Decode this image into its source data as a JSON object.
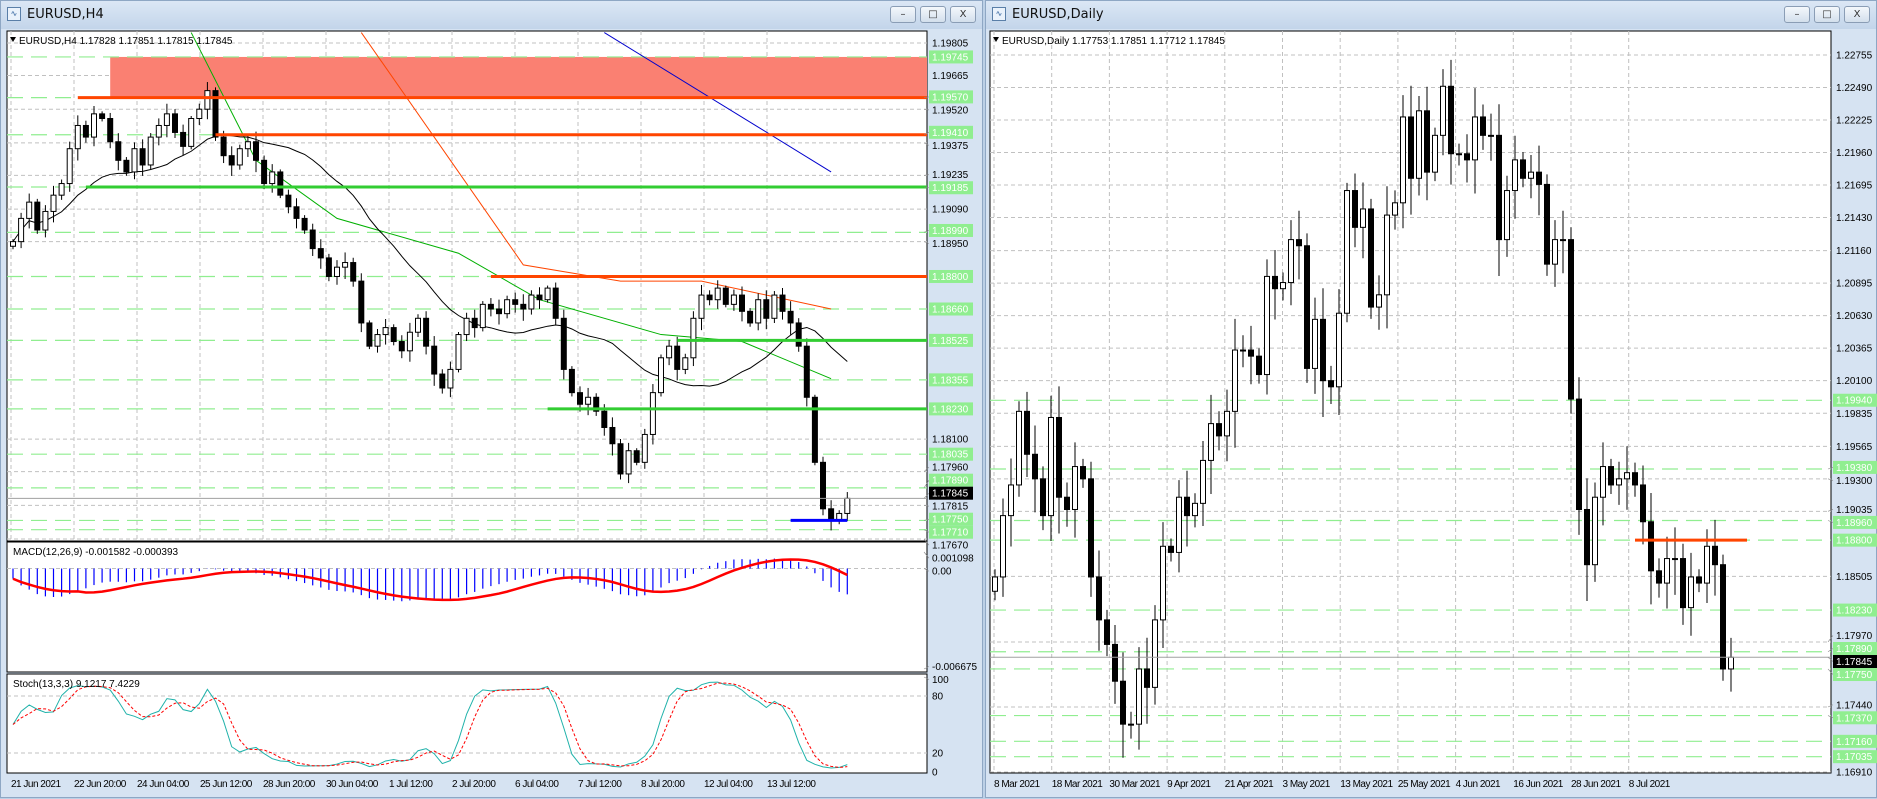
{
  "left_window": {
    "title": "EURUSD,H4",
    "header": "EURUSD,H4  1.17828 1.17851 1.17815 1.17845",
    "buttons": {
      "minimize": "–",
      "restore": "□",
      "close": "X"
    }
  },
  "right_window": {
    "title": "EURUSD,Daily",
    "header": "EURUSD,Daily  1.17753 1.17851 1.17712 1.17845",
    "buttons": {
      "minimize": "–",
      "restore": "□",
      "close": "X"
    }
  },
  "colors": {
    "bull_body": "#ffffff",
    "bear_body": "#000000",
    "level_label": "#90ee90",
    "resistance": "#ff4500",
    "support": "#32cd32",
    "zone": "#fa8072",
    "grid": "#c0c0c0",
    "macd_hist": "#0000ff",
    "macd_signal": "#ff0000",
    "stoch_main": "#20b2aa",
    "stoch_signal": "#ff0000"
  },
  "chart_data": [
    {
      "type": "candlestick",
      "symbol": "EURUSD",
      "timeframe": "H4",
      "ylim": [
        1.1767,
        1.19805
      ],
      "price_ticks": [
        "1.19805",
        "1.19665",
        "1.19520",
        "1.19375",
        "1.19235",
        "1.19090",
        "1.18950",
        "1.18100",
        "1.17960",
        "1.17815",
        "1.17670"
      ],
      "level_labels": [
        "1.19745",
        "1.19570",
        "1.19410",
        "1.19185",
        "1.18990",
        "1.18800",
        "1.18660",
        "1.18525",
        "1.18355",
        "1.18230",
        "1.18035",
        "1.17890",
        "1.17750",
        "1.17710"
      ],
      "current_price": "1.17845",
      "x_labels": [
        "21 Jun 2021",
        "22 Jun 20:00",
        "24 Jun 04:00",
        "25 Jun 12:00",
        "28 Jun 20:00",
        "30 Jun 04:00",
        "1 Jul 12:00",
        "2 Jul 20:00",
        "6 Jul 04:00",
        "7 Jul 12:00",
        "8 Jul 20:00",
        "12 Jul 04:00",
        "13 Jul 12:00"
      ],
      "close": [
        1.1895,
        1.1905,
        1.1912,
        1.19,
        1.1908,
        1.1915,
        1.192,
        1.1935,
        1.1945,
        1.194,
        1.195,
        1.1948,
        1.1938,
        1.193,
        1.1925,
        1.1935,
        1.1928,
        1.194,
        1.1945,
        1.195,
        1.1942,
        1.1936,
        1.1948,
        1.1952,
        1.196,
        1.194,
        1.1932,
        1.1928,
        1.1935,
        1.1938,
        1.193,
        1.192,
        1.1925,
        1.1915,
        1.191,
        1.1905,
        1.19,
        1.1892,
        1.1888,
        1.188,
        1.1884,
        1.1886,
        1.1878,
        1.186,
        1.185,
        1.1855,
        1.1858,
        1.1852,
        1.1848,
        1.1856,
        1.1862,
        1.185,
        1.1838,
        1.1832,
        1.184,
        1.1855,
        1.1862,
        1.1858,
        1.1868,
        1.1866,
        1.1864,
        1.187,
        1.1868,
        1.1866,
        1.1872,
        1.187,
        1.1875,
        1.1862,
        1.184,
        1.183,
        1.1825,
        1.1828,
        1.1822,
        1.1815,
        1.1808,
        1.1795,
        1.1805,
        1.18,
        1.1812,
        1.183,
        1.1845,
        1.185,
        1.184,
        1.1845,
        1.1862,
        1.1872,
        1.187,
        1.1875,
        1.1868,
        1.1872,
        1.1865,
        1.186,
        1.187,
        1.1862,
        1.1872,
        1.1865,
        1.186,
        1.185,
        1.1828,
        1.18,
        1.178,
        1.1775,
        1.1778,
        1.17845
      ],
      "zones": [
        {
          "from_bar": 12,
          "top": 1.19745,
          "bottom": 1.1957
        }
      ],
      "hlines": [
        {
          "price": 1.1957,
          "from_bar": 8,
          "color": "resistance"
        },
        {
          "price": 1.1941,
          "from_bar": 25,
          "color": "resistance"
        },
        {
          "price": 1.188,
          "from_bar": 59,
          "color": "resistance"
        },
        {
          "price": 1.19185,
          "from_bar": 9,
          "color": "support"
        },
        {
          "price": 1.18525,
          "from_bar": 82,
          "color": "support"
        },
        {
          "price": 1.1823,
          "from_bar": 66,
          "color": "support"
        },
        {
          "price": 1.1775,
          "from_bar": 96,
          "to_bar": 103,
          "color": "macd_hist"
        }
      ],
      "moving_averages": [
        {
          "color": "#00b000",
          "points": [
            [
              22,
              1.1985
            ],
            [
              30,
              1.193
            ],
            [
              40,
              1.1905
            ],
            [
              55,
              1.189
            ],
            [
              65,
              1.187
            ],
            [
              80,
              1.1855
            ],
            [
              90,
              1.1852
            ],
            [
              101,
              1.1836
            ]
          ]
        },
        {
          "color": "#ff4500",
          "points": [
            [
              43,
              1.1985
            ],
            [
              55,
              1.1925
            ],
            [
              63,
              1.1885
            ],
            [
              75,
              1.1878
            ],
            [
              85,
              1.1878
            ],
            [
              101,
              1.1866
            ]
          ]
        },
        {
          "color": "#0000cd",
          "points": [
            [
              73,
              1.1985
            ],
            [
              101,
              1.1925
            ]
          ]
        }
      ],
      "macd": {
        "label": "MACD(12,26,9) -0.001582 -0.000393",
        "ticks": [
          "0.001098",
          "0.00",
          "-0.006675"
        ],
        "ylim": [
          -0.006675,
          0.001098
        ]
      },
      "stoch": {
        "label": "Stoch(13,3,3) 9.1217 7.4229",
        "ticks": [
          "100",
          "80",
          "20",
          "0"
        ]
      }
    },
    {
      "type": "candlestick",
      "symbol": "EURUSD",
      "timeframe": "Daily",
      "ylim": [
        1.1691,
        1.22755
      ],
      "price_ticks": [
        "1.22755",
        "1.22490",
        "1.22225",
        "1.21960",
        "1.21695",
        "1.21430",
        "1.21160",
        "1.20895",
        "1.20630",
        "1.20365",
        "1.20100",
        "1.19835",
        "1.19565",
        "1.19300",
        "1.19035",
        "1.18505",
        "1.17970",
        "1.17440",
        "1.16910"
      ],
      "level_labels": [
        "1.19940",
        "1.19380",
        "1.18960",
        "1.18800",
        "1.18230",
        "1.17890",
        "1.17750",
        "1.17370",
        "1.17160",
        "1.17035"
      ],
      "current_price": "1.17845",
      "x_labels": [
        "8 Mar 2021",
        "18 Mar 2021",
        "30 Mar 2021",
        "9 Apr 2021",
        "21 Apr 2021",
        "3 May 2021",
        "13 May 2021",
        "25 May 2021",
        "4 Jun 2021",
        "16 Jun 2021",
        "28 Jun 2021",
        "8 Jul 2021"
      ],
      "close": [
        1.185,
        1.19,
        1.1925,
        1.1985,
        1.195,
        1.193,
        1.19,
        1.198,
        1.1915,
        1.1905,
        1.194,
        1.193,
        1.185,
        1.1815,
        1.1795,
        1.1765,
        1.173,
        1.173,
        1.1775,
        1.176,
        1.1815,
        1.1875,
        1.187,
        1.1915,
        1.19,
        1.191,
        1.1945,
        1.1975,
        1.1965,
        1.1985,
        1.2035,
        1.2035,
        1.203,
        1.2015,
        1.2095,
        1.2085,
        1.209,
        1.2125,
        1.212,
        1.202,
        1.206,
        1.201,
        1.2005,
        1.2065,
        1.2165,
        1.2135,
        1.215,
        1.207,
        1.208,
        1.2145,
        1.2155,
        1.2225,
        1.2175,
        1.223,
        1.218,
        1.221,
        1.225,
        1.2195,
        1.2195,
        1.219,
        1.2225,
        1.221,
        1.221,
        1.2125,
        1.2165,
        1.219,
        1.2175,
        1.218,
        1.217,
        1.2105,
        1.2125,
        1.2125,
        1.1995,
        1.1905,
        1.186,
        1.1915,
        1.194,
        1.1925,
        1.193,
        1.1935,
        1.1925,
        1.1895,
        1.1855,
        1.1845,
        1.1865,
        1.1865,
        1.1825,
        1.185,
        1.1845,
        1.1875,
        1.186,
        1.1775,
        1.17845
      ],
      "hlines": [
        {
          "price": 1.188,
          "from_bar": 80,
          "to_bar": 94,
          "color": "resistance"
        }
      ]
    }
  ]
}
